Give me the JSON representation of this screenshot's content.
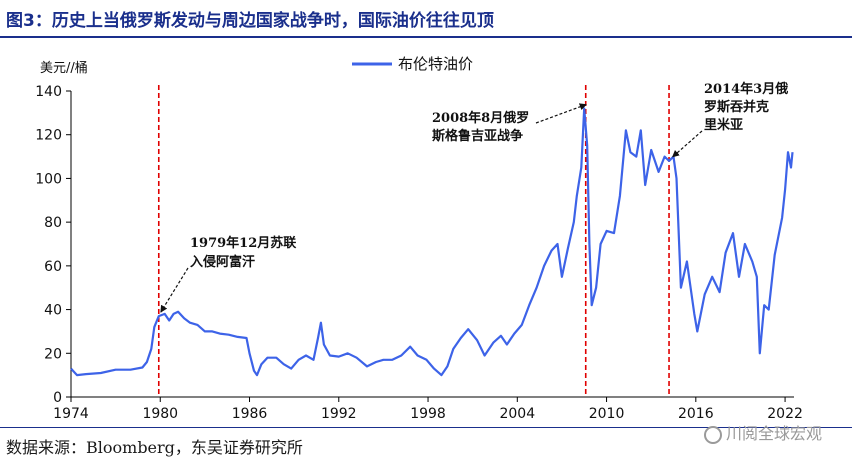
{
  "title": "图3：历史上当俄罗斯发动与周边国家战争时，国际油价往往见顶",
  "source": "数据来源：Bloomberg，东吴证券研究所",
  "watermark": "川阅全球宏观",
  "colors": {
    "series": "#3d63e8",
    "event_line": "#e00000",
    "title": "#1a2f8c"
  },
  "chart_data": {
    "type": "line",
    "ylabel": "美元//桶",
    "ylim": [
      0,
      140
    ],
    "y_ticks": [
      0,
      20,
      40,
      60,
      80,
      100,
      120,
      140
    ],
    "xlim": [
      1974,
      2022.6
    ],
    "x_ticks": [
      1974,
      1980,
      1986,
      1992,
      1998,
      2004,
      2010,
      2016,
      2022
    ],
    "grid": false,
    "legend": "top-center",
    "series": [
      {
        "name": "布伦特油价",
        "points": [
          [
            1974.0,
            13
          ],
          [
            1974.4,
            10
          ],
          [
            1975.0,
            10.5
          ],
          [
            1976.0,
            11
          ],
          [
            1977.0,
            12.5
          ],
          [
            1978.0,
            12.5
          ],
          [
            1978.8,
            13.5
          ],
          [
            1979.1,
            16
          ],
          [
            1979.4,
            22
          ],
          [
            1979.6,
            32
          ],
          [
            1979.9,
            37
          ],
          [
            1980.3,
            38
          ],
          [
            1980.6,
            35
          ],
          [
            1980.9,
            38
          ],
          [
            1981.2,
            39
          ],
          [
            1981.6,
            36
          ],
          [
            1982.0,
            34
          ],
          [
            1982.5,
            33
          ],
          [
            1983.0,
            30
          ],
          [
            1983.5,
            30
          ],
          [
            1984.0,
            29
          ],
          [
            1984.6,
            28.5
          ],
          [
            1985.2,
            27.5
          ],
          [
            1985.8,
            27
          ],
          [
            1986.0,
            20
          ],
          [
            1986.3,
            12
          ],
          [
            1986.5,
            10
          ],
          [
            1986.8,
            15
          ],
          [
            1987.2,
            18
          ],
          [
            1987.8,
            18
          ],
          [
            1988.3,
            15
          ],
          [
            1988.8,
            13
          ],
          [
            1989.3,
            17
          ],
          [
            1989.8,
            19
          ],
          [
            1990.3,
            17
          ],
          [
            1990.6,
            27
          ],
          [
            1990.8,
            34
          ],
          [
            1991.0,
            24
          ],
          [
            1991.4,
            19
          ],
          [
            1992.0,
            18.5
          ],
          [
            1992.6,
            20
          ],
          [
            1993.2,
            18
          ],
          [
            1993.9,
            14
          ],
          [
            1994.5,
            16
          ],
          [
            1995.0,
            17
          ],
          [
            1995.6,
            17
          ],
          [
            1996.2,
            19
          ],
          [
            1996.8,
            23
          ],
          [
            1997.3,
            19
          ],
          [
            1997.9,
            17
          ],
          [
            1998.4,
            13
          ],
          [
            1998.9,
            10
          ],
          [
            1999.3,
            14
          ],
          [
            1999.7,
            22
          ],
          [
            2000.2,
            27
          ],
          [
            2000.7,
            31
          ],
          [
            2001.3,
            26
          ],
          [
            2001.8,
            19
          ],
          [
            2002.4,
            25
          ],
          [
            2002.9,
            28
          ],
          [
            2003.3,
            24
          ],
          [
            2003.8,
            29
          ],
          [
            2004.3,
            33
          ],
          [
            2004.8,
            42
          ],
          [
            2005.3,
            50
          ],
          [
            2005.8,
            60
          ],
          [
            2006.3,
            67
          ],
          [
            2006.7,
            70
          ],
          [
            2007.0,
            55
          ],
          [
            2007.4,
            68
          ],
          [
            2007.8,
            80
          ],
          [
            2008.0,
            92
          ],
          [
            2008.3,
            105
          ],
          [
            2008.5,
            132
          ],
          [
            2008.7,
            115
          ],
          [
            2008.85,
            70
          ],
          [
            2009.0,
            42
          ],
          [
            2009.3,
            50
          ],
          [
            2009.6,
            70
          ],
          [
            2010.0,
            76
          ],
          [
            2010.5,
            75
          ],
          [
            2010.9,
            92
          ],
          [
            2011.3,
            122
          ],
          [
            2011.6,
            112
          ],
          [
            2012.0,
            110
          ],
          [
            2012.3,
            122
          ],
          [
            2012.6,
            97
          ],
          [
            2013.0,
            113
          ],
          [
            2013.5,
            103
          ],
          [
            2013.9,
            110
          ],
          [
            2014.2,
            108
          ],
          [
            2014.5,
            110
          ],
          [
            2014.7,
            100
          ],
          [
            2015.0,
            50
          ],
          [
            2015.4,
            62
          ],
          [
            2015.9,
            38
          ],
          [
            2016.1,
            30
          ],
          [
            2016.6,
            47
          ],
          [
            2017.1,
            55
          ],
          [
            2017.6,
            48
          ],
          [
            2018.0,
            66
          ],
          [
            2018.5,
            75
          ],
          [
            2018.9,
            55
          ],
          [
            2019.3,
            70
          ],
          [
            2019.8,
            62
          ],
          [
            2020.1,
            55
          ],
          [
            2020.3,
            20
          ],
          [
            2020.6,
            42
          ],
          [
            2020.9,
            40
          ],
          [
            2021.3,
            65
          ],
          [
            2021.8,
            82
          ],
          [
            2022.0,
            95
          ],
          [
            2022.2,
            112
          ],
          [
            2022.4,
            105
          ],
          [
            2022.5,
            112
          ]
        ]
      }
    ],
    "event_lines": [
      1979.9,
      2008.6,
      2014.2
    ],
    "annotations": [
      {
        "lines": [
          "1979年12月苏联",
          "入侵阿富汗"
        ],
        "x": 1979.9,
        "y": 37
      },
      {
        "lines": [
          "2008年8月俄罗",
          "斯格鲁吉亚战争"
        ],
        "x": 2008.5,
        "y": 132
      },
      {
        "lines": [
          "2014年3月俄",
          "罗斯吞并克",
          "里米亚"
        ],
        "x": 2014.3,
        "y": 108
      }
    ]
  }
}
